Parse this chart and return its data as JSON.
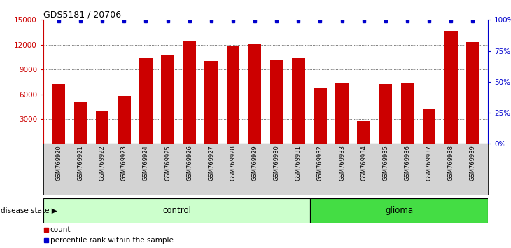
{
  "title": "GDS5181 / 20706",
  "samples": [
    "GSM769920",
    "GSM769921",
    "GSM769922",
    "GSM769923",
    "GSM769924",
    "GSM769925",
    "GSM769926",
    "GSM769927",
    "GSM769928",
    "GSM769929",
    "GSM769930",
    "GSM769931",
    "GSM769932",
    "GSM769933",
    "GSM769934",
    "GSM769935",
    "GSM769936",
    "GSM769937",
    "GSM769938",
    "GSM769939"
  ],
  "counts": [
    7200,
    5000,
    4000,
    5800,
    10400,
    10700,
    12400,
    10000,
    11800,
    12100,
    10200,
    10400,
    6800,
    7300,
    2700,
    7200,
    7300,
    4300,
    13700,
    12300
  ],
  "control_count": 12,
  "bar_color": "#cc0000",
  "dot_color": "#0000cc",
  "ylim_left": [
    0,
    15000
  ],
  "ylim_right": [
    0,
    100
  ],
  "yticks_left": [
    3000,
    6000,
    9000,
    12000,
    15000
  ],
  "yticks_right": [
    0,
    25,
    50,
    75,
    100
  ],
  "grid_values": [
    3000,
    6000,
    9000,
    12000
  ],
  "bg_color": "#ffffff",
  "tick_bg_color": "#d3d3d3",
  "control_color": "#ccffcc",
  "glioma_color": "#44dd44",
  "legend_count_label": "count",
  "legend_pct_label": "percentile rank within the sample",
  "disease_label": "disease state",
  "control_label": "control",
  "glioma_label": "glioma"
}
